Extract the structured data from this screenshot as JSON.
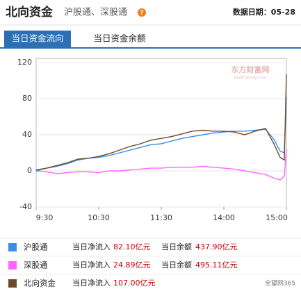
{
  "header": {
    "title": "北向资金",
    "subtitle": "沪股通、深股通",
    "help": "?",
    "date_label": "数据日期：05-28"
  },
  "tabs": [
    "当日资金流向",
    "当日资金余额"
  ],
  "watermark": "东方财富网",
  "watermark_sub": "eastmoney.com",
  "corner_mark": "全望网365",
  "chart_data": {
    "type": "line",
    "x": [
      0,
      10,
      20,
      30,
      40,
      50,
      60,
      70,
      80,
      90,
      100,
      110,
      120,
      130,
      140,
      150,
      160,
      170,
      180,
      190,
      200,
      210,
      220,
      228,
      234,
      238,
      240
    ],
    "xlim": [
      0,
      240
    ],
    "xticks": [
      {
        "value": 0,
        "label": "9:30"
      },
      {
        "value": 60,
        "label": "10:30"
      },
      {
        "value": 120,
        "label": "11:30"
      },
      {
        "value": 180,
        "label": "14:00"
      },
      {
        "value": 240,
        "label": "15:00"
      }
    ],
    "ylim": [
      -40,
      120
    ],
    "yticks": [
      -40,
      0,
      40,
      80,
      120
    ],
    "grid": true,
    "legend_labels": {
      "inflow": "当日净流入",
      "balance": "当日余额"
    },
    "series": [
      {
        "name": "沪股通",
        "color": "#3a8ee6",
        "net_inflow": "82.10亿元",
        "balance": "437.90亿元",
        "values": [
          0,
          3,
          5,
          8,
          12,
          14,
          15,
          17,
          20,
          23,
          26,
          29,
          30,
          33,
          36,
          38,
          40,
          42,
          43,
          44,
          44,
          45,
          46,
          35,
          22,
          20,
          82.1
        ]
      },
      {
        "name": "深股通",
        "color": "#ff66ff",
        "net_inflow": "24.89亿元",
        "balance": "495.11亿元",
        "values": [
          0,
          -1,
          -3,
          -2,
          -1,
          -1,
          -2,
          0,
          0,
          1,
          2,
          3,
          3,
          4,
          4,
          4,
          5,
          4,
          3,
          2,
          0,
          -2,
          -4,
          -8,
          -10,
          -6,
          24.89
        ]
      },
      {
        "name": "北向资金",
        "color": "#6b4a2b",
        "net_inflow": "107.00亿元",
        "balance": null,
        "values": [
          1,
          3,
          6,
          9,
          13,
          14,
          16,
          19,
          23,
          27,
          30,
          34,
          36,
          38,
          41,
          44,
          45,
          44,
          44,
          43,
          40,
          44,
          47,
          30,
          15,
          12,
          107
        ]
      }
    ]
  }
}
